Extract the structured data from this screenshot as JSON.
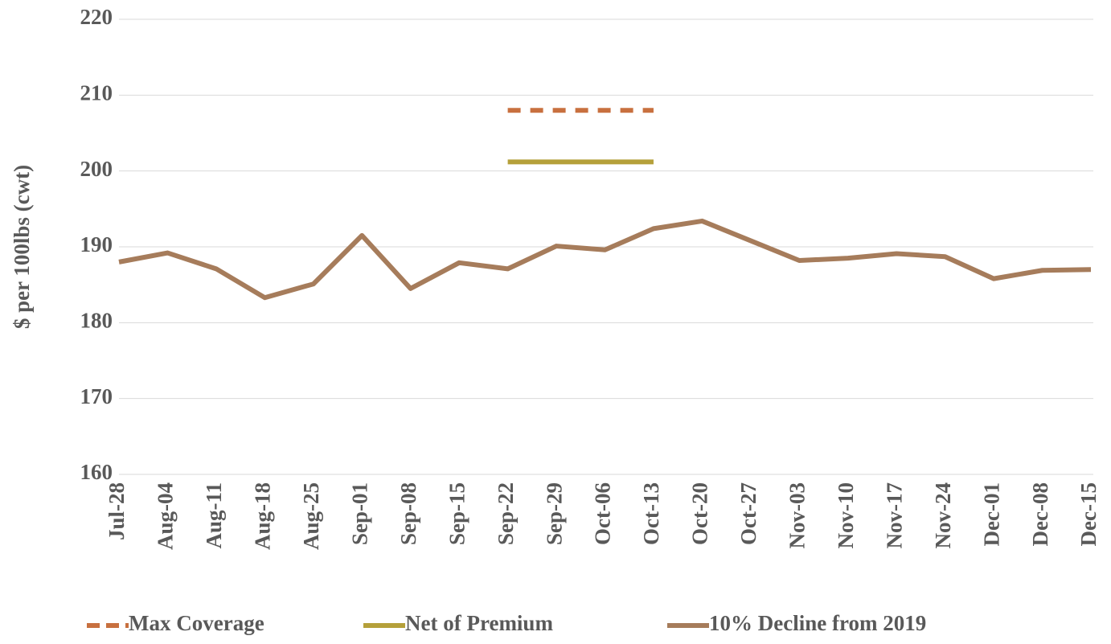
{
  "chart_data": {
    "type": "line",
    "y_label": "$ per 100lbs (cwt)",
    "categories": [
      "Jul-28",
      "Aug-04",
      "Aug-11",
      "Aug-18",
      "Aug-25",
      "Sep-01",
      "Sep-08",
      "Sep-15",
      "Sep-22",
      "Sep-29",
      "Oct-06",
      "Oct-13",
      "Oct-20",
      "Oct-27",
      "Nov-03",
      "Nov-10",
      "Nov-17",
      "Nov-24",
      "Dec-01",
      "Dec-08",
      "Dec-15"
    ],
    "series": [
      {
        "name": "Max Coverage",
        "color": "#c8703f",
        "dashed": true,
        "values": [
          null,
          null,
          null,
          null,
          null,
          null,
          null,
          null,
          208,
          208,
          208,
          208,
          null,
          null,
          null,
          null,
          null,
          null,
          null,
          null,
          null
        ]
      },
      {
        "name": "Net of Premium",
        "color": "#b5a03a",
        "dashed": false,
        "values": [
          null,
          null,
          null,
          null,
          null,
          null,
          null,
          null,
          201.2,
          201.2,
          201.2,
          201.2,
          null,
          null,
          null,
          null,
          null,
          null,
          null,
          null,
          null
        ]
      },
      {
        "name": "10% Decline from 2019",
        "color": "#a67c5b",
        "dashed": false,
        "values": [
          188.0,
          189.2,
          187.1,
          183.3,
          185.1,
          191.5,
          184.5,
          187.9,
          187.1,
          190.1,
          189.6,
          192.4,
          193.4,
          190.8,
          188.2,
          188.5,
          189.1,
          188.7,
          185.8,
          186.9,
          187.0
        ]
      }
    ],
    "ylim": [
      160,
      220
    ],
    "yticks": [
      160,
      170,
      180,
      190,
      200,
      210,
      220
    ],
    "grid": true
  }
}
